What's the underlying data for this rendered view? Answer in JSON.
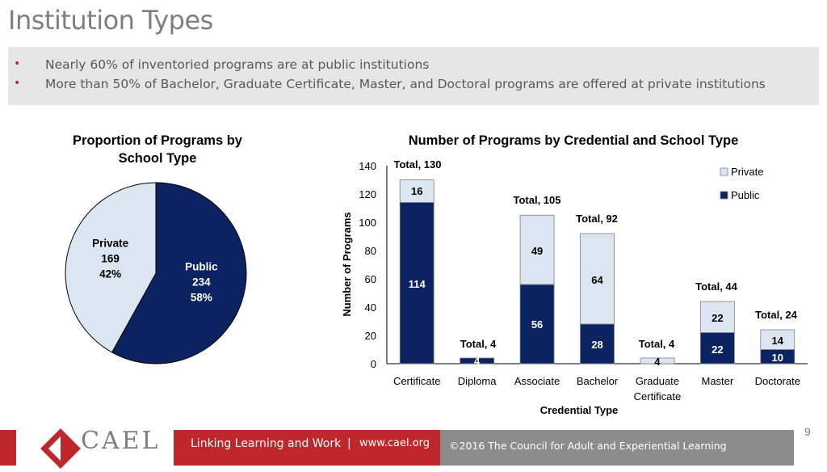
{
  "slide": {
    "title": "Institution Types",
    "bullets": [
      "Nearly 60% of inventoried programs are at public institutions",
      "More than 50% of Bachelor, Graduate Certificate, Master, and Doctoral programs are offered at private institutions"
    ],
    "bullet_marker": "•",
    "page_number": "9"
  },
  "footer": {
    "logo_text": "CAEL",
    "tagline": "Linking Learning and Work",
    "separator": "|",
    "url": "www.cael.org",
    "copyright": "©2016 The Council for Adult and Experiential Learning"
  },
  "colors": {
    "public": "#0b2461",
    "private": "#dce6f2",
    "accent": "#c0272d"
  },
  "chart_data": [
    {
      "type": "pie",
      "title_line1": "Proportion of Programs by",
      "title_line2": "School Type",
      "slices": [
        {
          "name": "Public",
          "value": 234,
          "percent": "58%"
        },
        {
          "name": "Private",
          "value": 169,
          "percent": "42%"
        }
      ]
    },
    {
      "type": "bar",
      "stacked": true,
      "title": "Number of Programs by Credential and School Type",
      "xlabel": "Credential Type",
      "ylabel": "Number of Programs",
      "ylim": [
        0,
        140
      ],
      "yticks": [
        "0",
        "20",
        "40",
        "60",
        "80",
        "100",
        "120",
        "140"
      ],
      "categories": [
        "Certificate",
        "Diploma",
        "Associate",
        "Bachelor",
        "Graduate Certificate",
        "Master",
        "Doctorate"
      ],
      "category_lines": [
        [
          "Certificate"
        ],
        [
          "Diploma"
        ],
        [
          "Associate"
        ],
        [
          "Bachelor"
        ],
        [
          "Graduate",
          "Certificate"
        ],
        [
          "Master"
        ],
        [
          "Doctorate"
        ]
      ],
      "series": [
        {
          "name": "Public",
          "values": [
            114,
            4,
            56,
            28,
            0,
            22,
            10
          ]
        },
        {
          "name": "Private",
          "values": [
            16,
            0,
            49,
            64,
            4,
            22,
            14
          ]
        }
      ],
      "totals": [
        130,
        4,
        105,
        92,
        4,
        44,
        24
      ],
      "total_labels": [
        "Total, 130",
        "Total, 4",
        "Total, 105",
        "Total, 92",
        "Total, 4",
        "Total, 44",
        "Total, 24"
      ],
      "legend": [
        "Private",
        "Public"
      ]
    }
  ]
}
